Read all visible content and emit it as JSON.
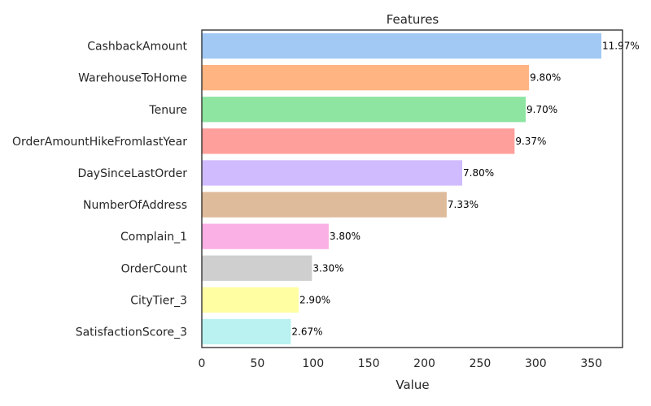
{
  "chart_data": {
    "type": "bar",
    "orientation": "horizontal",
    "title": "Features",
    "xlabel": "Value",
    "ylabel": "",
    "xlim": [
      0,
      378
    ],
    "xticks": [
      0,
      50,
      100,
      150,
      200,
      250,
      300,
      350
    ],
    "grid": false,
    "categories": [
      "CashbackAmount",
      "WarehouseToHome",
      "Tenure",
      "OrderAmountHikeFromlastYear",
      "DaySinceLastOrder",
      "NumberOfAddress",
      "Complain_1",
      "OrderCount",
      "CityTier_3",
      "SatisfactionScore_3"
    ],
    "values": [
      359,
      294,
      291,
      281,
      234,
      220,
      114,
      99,
      87,
      80
    ],
    "labels": [
      "11.97%",
      "9.80%",
      "9.70%",
      "9.37%",
      "7.80%",
      "7.33%",
      "3.80%",
      "3.30%",
      "2.90%",
      "2.67%"
    ],
    "colors": [
      "#a1c9f4",
      "#ffb482",
      "#8de5a1",
      "#ff9f9b",
      "#d0bbff",
      "#debb9b",
      "#fab0e4",
      "#cfcfcf",
      "#fffea3",
      "#b9f2f0"
    ]
  }
}
